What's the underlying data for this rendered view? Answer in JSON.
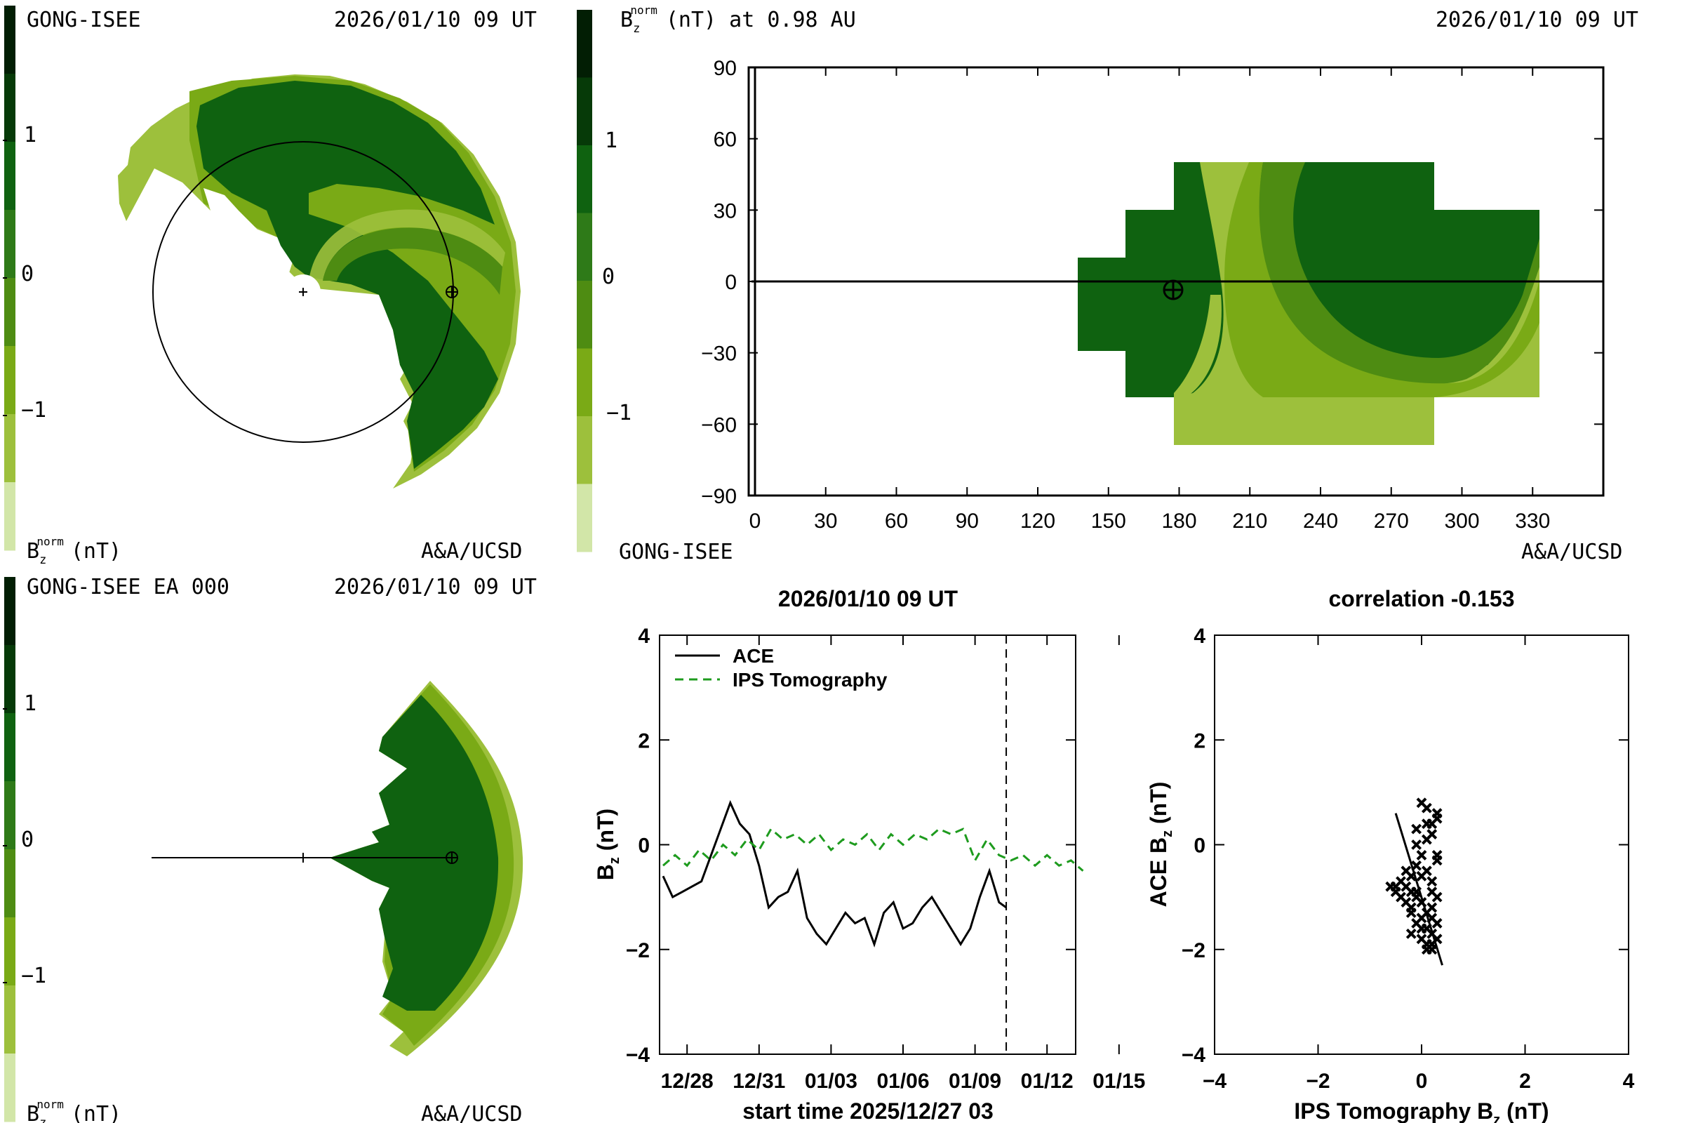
{
  "palette": [
    "#d2e6a8",
    "#9dc03c",
    "#7aaa16",
    "#4e8c12",
    "#2e7a18",
    "#0f6210",
    "#063a08",
    "#021e04"
  ],
  "panels": {
    "top_left": {
      "source": "GONG-ISEE",
      "time": "2026/01/10 09 UT",
      "credit": "A&A/UCSD",
      "colorbar_ticks": [
        "1",
        "0",
        "−1"
      ]
    },
    "top_right": {
      "title_sub": "norm",
      "title_rest": "(nT) at 0.98 AU",
      "time": "2026/01/10 09 UT",
      "source": "GONG-ISEE",
      "credit": "A&A/UCSD",
      "colorbar_ticks": [
        "1",
        "0",
        "−1"
      ],
      "x_ticks": [
        "0",
        "30",
        "60",
        "90",
        "120",
        "150",
        "180",
        "210",
        "240",
        "270",
        "300",
        "330"
      ],
      "y_ticks": [
        "90",
        "60",
        "30",
        "0",
        "−30",
        "−60",
        "−90"
      ],
      "earth_marker": {
        "lon": 175,
        "lat": -4
      }
    },
    "bottom_left": {
      "source": "GONG-ISEE EA 000",
      "time": "2026/01/10 09 UT",
      "credit": "A&A/UCSD",
      "colorbar_ticks": [
        "1",
        "0",
        "−1"
      ]
    }
  },
  "colorbar_label": {
    "main": "B",
    "sub": "z",
    "sup": "norm",
    "unit": "(nT)"
  },
  "chart_data": [
    {
      "type": "line",
      "title": "2026/01/10 09 UT",
      "xlabel": "start time 2025/12/27 03",
      "ylabel": "Bz (nT)",
      "ylim": [
        -4,
        4
      ],
      "x_tick_labels": [
        "12/28",
        "12/31",
        "01/03",
        "01/06",
        "01/09",
        "01/12",
        "01/15"
      ],
      "y_tick_labels": [
        "4",
        "2",
        "0",
        "−2",
        "−4"
      ],
      "now_marker_day": 14.3,
      "series": [
        {
          "name": "ACE",
          "style": "solid",
          "color": "#000000",
          "x": [
            0,
            0.4,
            0.8,
            1.2,
            1.6,
            2.0,
            2.4,
            2.8,
            3.2,
            3.6,
            4.0,
            4.4,
            4.8,
            5.2,
            5.6,
            6.0,
            6.4,
            6.8,
            7.2,
            7.6,
            8.0,
            8.4,
            8.8,
            9.2,
            9.6,
            10.0,
            10.4,
            10.8,
            11.2,
            11.6,
            12.0,
            12.4,
            12.8,
            13.2,
            13.6,
            14.0,
            14.3
          ],
          "values": [
            -0.6,
            -1.0,
            -0.9,
            -0.8,
            -0.7,
            -0.2,
            0.3,
            0.8,
            0.4,
            0.2,
            -0.4,
            -1.2,
            -1.0,
            -0.9,
            -0.5,
            -1.4,
            -1.7,
            -1.9,
            -1.6,
            -1.3,
            -1.5,
            -1.4,
            -1.9,
            -1.3,
            -1.1,
            -1.6,
            -1.5,
            -1.2,
            -1.0,
            -1.3,
            -1.6,
            -1.9,
            -1.6,
            -1.0,
            -0.5,
            -1.1,
            -1.2
          ]
        },
        {
          "name": "IPS Tomography",
          "style": "dashed",
          "color": "#1e9b1e",
          "x": [
            0,
            0.5,
            1.0,
            1.5,
            2.0,
            2.5,
            3.0,
            3.5,
            4.0,
            4.5,
            5.0,
            5.5,
            6.0,
            6.5,
            7.0,
            7.5,
            8.0,
            8.5,
            9.0,
            9.5,
            10.0,
            10.5,
            11.0,
            11.5,
            12.0,
            12.5,
            13.0,
            13.5,
            14.0,
            14.5,
            15.0,
            15.5,
            16.0,
            16.5,
            17.0,
            17.5
          ],
          "values": [
            -0.4,
            -0.2,
            -0.4,
            -0.1,
            -0.3,
            0.0,
            -0.2,
            0.1,
            -0.1,
            0.3,
            0.1,
            0.2,
            0.0,
            0.2,
            -0.1,
            0.1,
            0.0,
            0.2,
            -0.1,
            0.2,
            0.0,
            0.2,
            0.1,
            0.3,
            0.2,
            0.3,
            -0.3,
            0.1,
            -0.2,
            -0.3,
            -0.2,
            -0.4,
            -0.2,
            -0.4,
            -0.3,
            -0.5
          ]
        }
      ]
    },
    {
      "type": "scatter",
      "title": "correlation -0.153",
      "xlabel": "IPS Tomography Bz (nT)",
      "ylabel": "ACE Bz (nT)",
      "xlim": [
        -4,
        4
      ],
      "ylim": [
        -4,
        4
      ],
      "x_tick_labels": [
        "−4",
        "−2",
        "0",
        "2",
        "4"
      ],
      "y_tick_labels": [
        "4",
        "2",
        "0",
        "−2",
        "−4"
      ],
      "points": [
        [
          -0.3,
          -0.8
        ],
        [
          -0.2,
          -0.9
        ],
        [
          -0.4,
          -0.7
        ],
        [
          -0.1,
          -1.0
        ],
        [
          -0.5,
          -0.8
        ],
        [
          -0.3,
          -1.1
        ],
        [
          -0.2,
          -1.2
        ],
        [
          0.0,
          -1.4
        ],
        [
          0.1,
          -1.6
        ],
        [
          0.2,
          -1.7
        ],
        [
          -0.1,
          -1.5
        ],
        [
          0.3,
          -1.8
        ],
        [
          0.2,
          -1.9
        ],
        [
          0.0,
          -1.8
        ],
        [
          0.1,
          -1.3
        ],
        [
          -0.2,
          -0.6
        ],
        [
          -0.1,
          -0.4
        ],
        [
          0.1,
          -0.5
        ],
        [
          0.2,
          -0.9
        ],
        [
          0.3,
          -1.0
        ],
        [
          0.0,
          -0.2
        ],
        [
          0.1,
          0.1
        ],
        [
          -0.1,
          0.3
        ],
        [
          0.2,
          0.4
        ],
        [
          0.3,
          0.6
        ],
        [
          0.1,
          0.7
        ],
        [
          0.0,
          0.8
        ],
        [
          0.2,
          0.2
        ],
        [
          0.3,
          -0.3
        ],
        [
          0.2,
          -1.4
        ],
        [
          -0.2,
          -1.7
        ],
        [
          0.0,
          -1.1
        ],
        [
          0.2,
          -0.7
        ],
        [
          -0.4,
          -1.0
        ],
        [
          -0.5,
          -0.9
        ],
        [
          -0.6,
          -0.8
        ],
        [
          0.1,
          -1.9
        ],
        [
          0.3,
          -1.5
        ],
        [
          0.1,
          -2.0
        ],
        [
          -0.1,
          -0.9
        ],
        [
          0.2,
          -1.2
        ],
        [
          0.0,
          -0.6
        ],
        [
          0.3,
          -0.2
        ],
        [
          0.1,
          0.4
        ],
        [
          -0.1,
          0.0
        ],
        [
          0.2,
          -2.0
        ],
        [
          -0.2,
          -1.3
        ],
        [
          0.0,
          -1.6
        ],
        [
          0.3,
          0.5
        ],
        [
          -0.3,
          -0.5
        ]
      ],
      "fit_line": {
        "x": [
          -0.5,
          0.4
        ],
        "y": [
          0.6,
          -2.3
        ]
      }
    }
  ]
}
